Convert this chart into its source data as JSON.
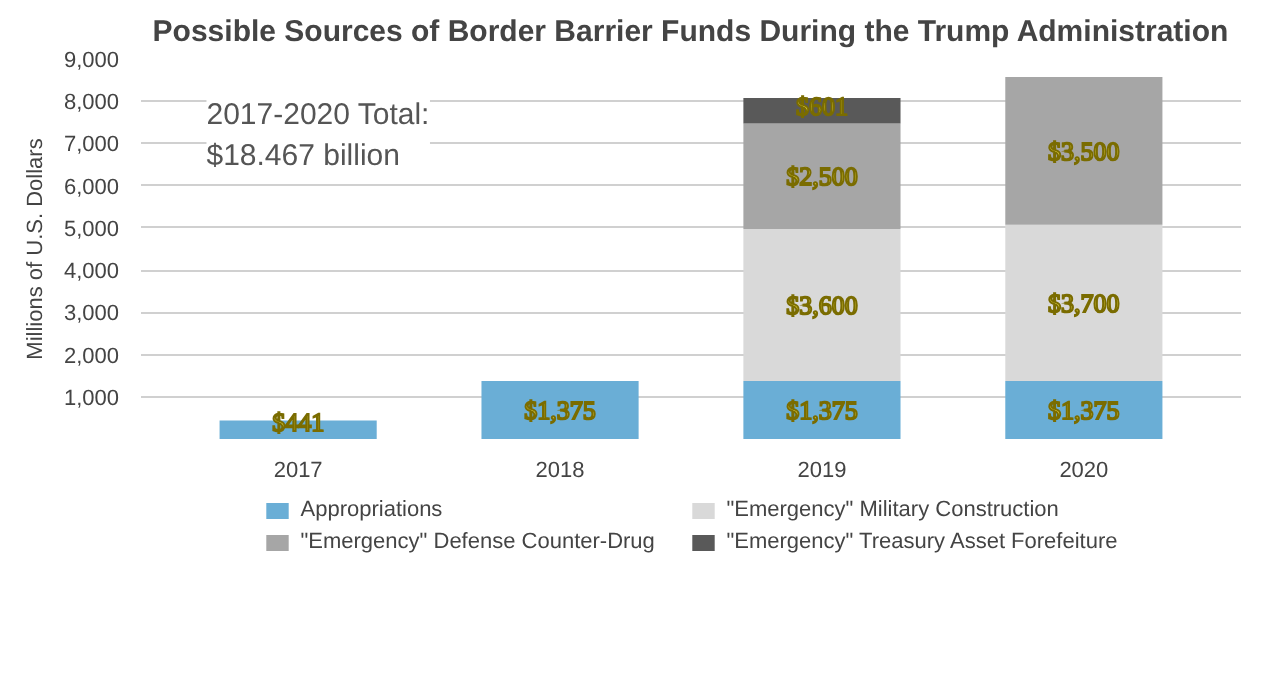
{
  "chart_data": {
    "type": "bar",
    "stacked": true,
    "title": "Possible Sources of Border Barrier Funds During the Trump Administration",
    "ylabel": "Millions of U.S. Dollars",
    "categories": [
      "2017",
      "2018",
      "2019",
      "2020"
    ],
    "series": [
      {
        "name": "Appropriations",
        "color": "#6aaed6",
        "values": [
          441,
          1375,
          1375,
          1375
        ],
        "value_labels": [
          "$441",
          "$1,375",
          "$1,375",
          "$1,375"
        ]
      },
      {
        "name": "\"Emergency\" Military Construction",
        "color": "#d9d9d9",
        "values": [
          null,
          null,
          3600,
          3700
        ],
        "value_labels": [
          null,
          null,
          "$3,600",
          "$3,700"
        ]
      },
      {
        "name": "\"Emergency\" Defense Counter-Drug",
        "color": "#a6a6a6",
        "values": [
          null,
          null,
          2500,
          3500
        ],
        "value_labels": [
          null,
          null,
          "$2,500",
          "$3,500"
        ]
      },
      {
        "name": "\"Emergency\" Treasury Asset Forefeiture",
        "color": "#595959",
        "values": [
          null,
          null,
          601,
          null
        ],
        "value_labels": [
          null,
          null,
          "$601",
          null
        ]
      }
    ],
    "ylim": [
      0,
      9000
    ],
    "yticks": [
      {
        "value": 1000,
        "label": "1,000"
      },
      {
        "value": 2000,
        "label": "2,000"
      },
      {
        "value": 3000,
        "label": "3,000"
      },
      {
        "value": 4000,
        "label": "4,000"
      },
      {
        "value": 5000,
        "label": "5,000"
      },
      {
        "value": 6000,
        "label": "6,000"
      },
      {
        "value": 7000,
        "label": "7,000"
      },
      {
        "value": 8000,
        "label": "8,000"
      },
      {
        "value": 9000,
        "label": "9,000"
      }
    ],
    "grid": "y",
    "legend": "bottom",
    "annotations": [
      "2017-2020 Total:\n$18.467 billion"
    ]
  }
}
